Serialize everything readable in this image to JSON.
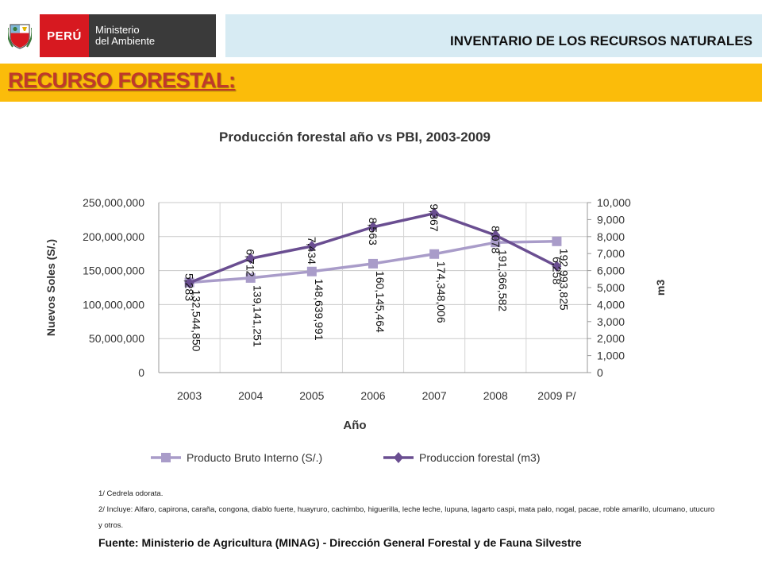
{
  "header": {
    "logo_country": "PERÚ",
    "logo_ministry_line1": "Ministerio",
    "logo_ministry_line2": "del Ambiente",
    "title": "INVENTARIO DE LOS RECURSOS NATURALES"
  },
  "section": {
    "title": "RECURSO FORESTAL:"
  },
  "colors": {
    "pbi": "#a99cc9",
    "forestal": "#6a4e91",
    "header_bar": "#d7ebf3",
    "section_bar": "#fbbc0a",
    "section_title": "#c0392b",
    "logo_red": "#d71920",
    "logo_dark": "#3a3a3a"
  },
  "chart_data": {
    "type": "line",
    "title": "Producción forestal año vs PBI, 2003-2009",
    "xlabel": "Año",
    "ylabel_left": "Nuevos Soles (S/.)",
    "ylabel_right": "m3",
    "categories": [
      "2003",
      "2004",
      "2005",
      "2006",
      "2007",
      "2008",
      "2009 P/"
    ],
    "left_ticks": [
      "0",
      "50,000,000",
      "100,000,000",
      "150,000,000",
      "200,000,000",
      "250,000,000"
    ],
    "right_ticks": [
      "0",
      "1,000",
      "2,000",
      "3,000",
      "4,000",
      "5,000",
      "6,000",
      "7,000",
      "8,000",
      "9,000",
      "10,000"
    ],
    "ylim_left": [
      0,
      250000000
    ],
    "ylim_right": [
      0,
      10000
    ],
    "legend_position": "bottom",
    "grid": true,
    "series": [
      {
        "name": "Producto Bruto Interno (S/.)",
        "axis": "left",
        "values": [
          132544850,
          139141251,
          148639991,
          160145464,
          174348006,
          191366582,
          192993825
        ],
        "labels": [
          "132,544,850",
          "139,141,251",
          "148,639,991",
          "160,145,464",
          "174,348,006",
          "191,366,582",
          "192,993,825"
        ]
      },
      {
        "name": "Produccion forestal (m3)",
        "axis": "right",
        "values": [
          5283,
          6712,
          7434,
          8563,
          9367,
          8078,
          6258
        ],
        "labels": [
          "5,283",
          "6,712",
          "7,434",
          "8,563",
          "9,367",
          "8,078",
          "6,258"
        ]
      }
    ]
  },
  "footnotes": {
    "note1": "1/ Cedrela odorata.",
    "note2": "2/ Incluye: Alfaro, capirona, caraña, congona, diablo fuerte, huayruro, cachimbo, higuerilla, leche leche, lupuna, lagarto caspi, mata palo, nogal, pacae, roble amarillo, ulcumano, utucuro y otros.",
    "source": "Fuente: Ministerio de Agricultura (MINAG) - Dirección General Forestal y de Fauna Silvestre"
  }
}
